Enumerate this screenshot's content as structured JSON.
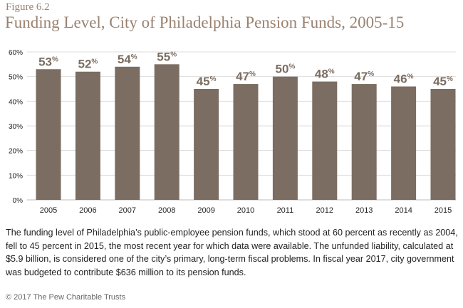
{
  "figure_label": "Figure 6.2",
  "description": "The funding level of Philadelphia’s public-employee pension funds, which stood at 60 percent as recently as 2004, fell to 45 percent in 2015, the most recent year for which data were available. The unfunded liability, calculated at $5.9 billion, is considered one of the city’s primary, long-term fiscal problems. In fiscal year 2017, city government was budgeted to contribute $636 million to its pension funds.",
  "footer": "© 2017 The Pew Charitable Trusts",
  "chart_data": {
    "type": "bar",
    "title": "Funding Level, City of Philadelphia Pension Funds, 2005-15",
    "categories": [
      "2005",
      "2006",
      "2007",
      "2008",
      "2009",
      "2010",
      "2011",
      "2012",
      "2013",
      "2014",
      "2015"
    ],
    "values": [
      53,
      52,
      54,
      55,
      45,
      47,
      50,
      48,
      47,
      46,
      45
    ],
    "value_suffix": "%",
    "yticks": [
      "0%",
      "10%",
      "20%",
      "30%",
      "40%",
      "50%",
      "60%"
    ],
    "ylim": [
      0,
      60
    ],
    "grid": true,
    "colors": {
      "bar": "#7b6d61",
      "title": "#9a8270",
      "grid": "#dddddd"
    }
  }
}
